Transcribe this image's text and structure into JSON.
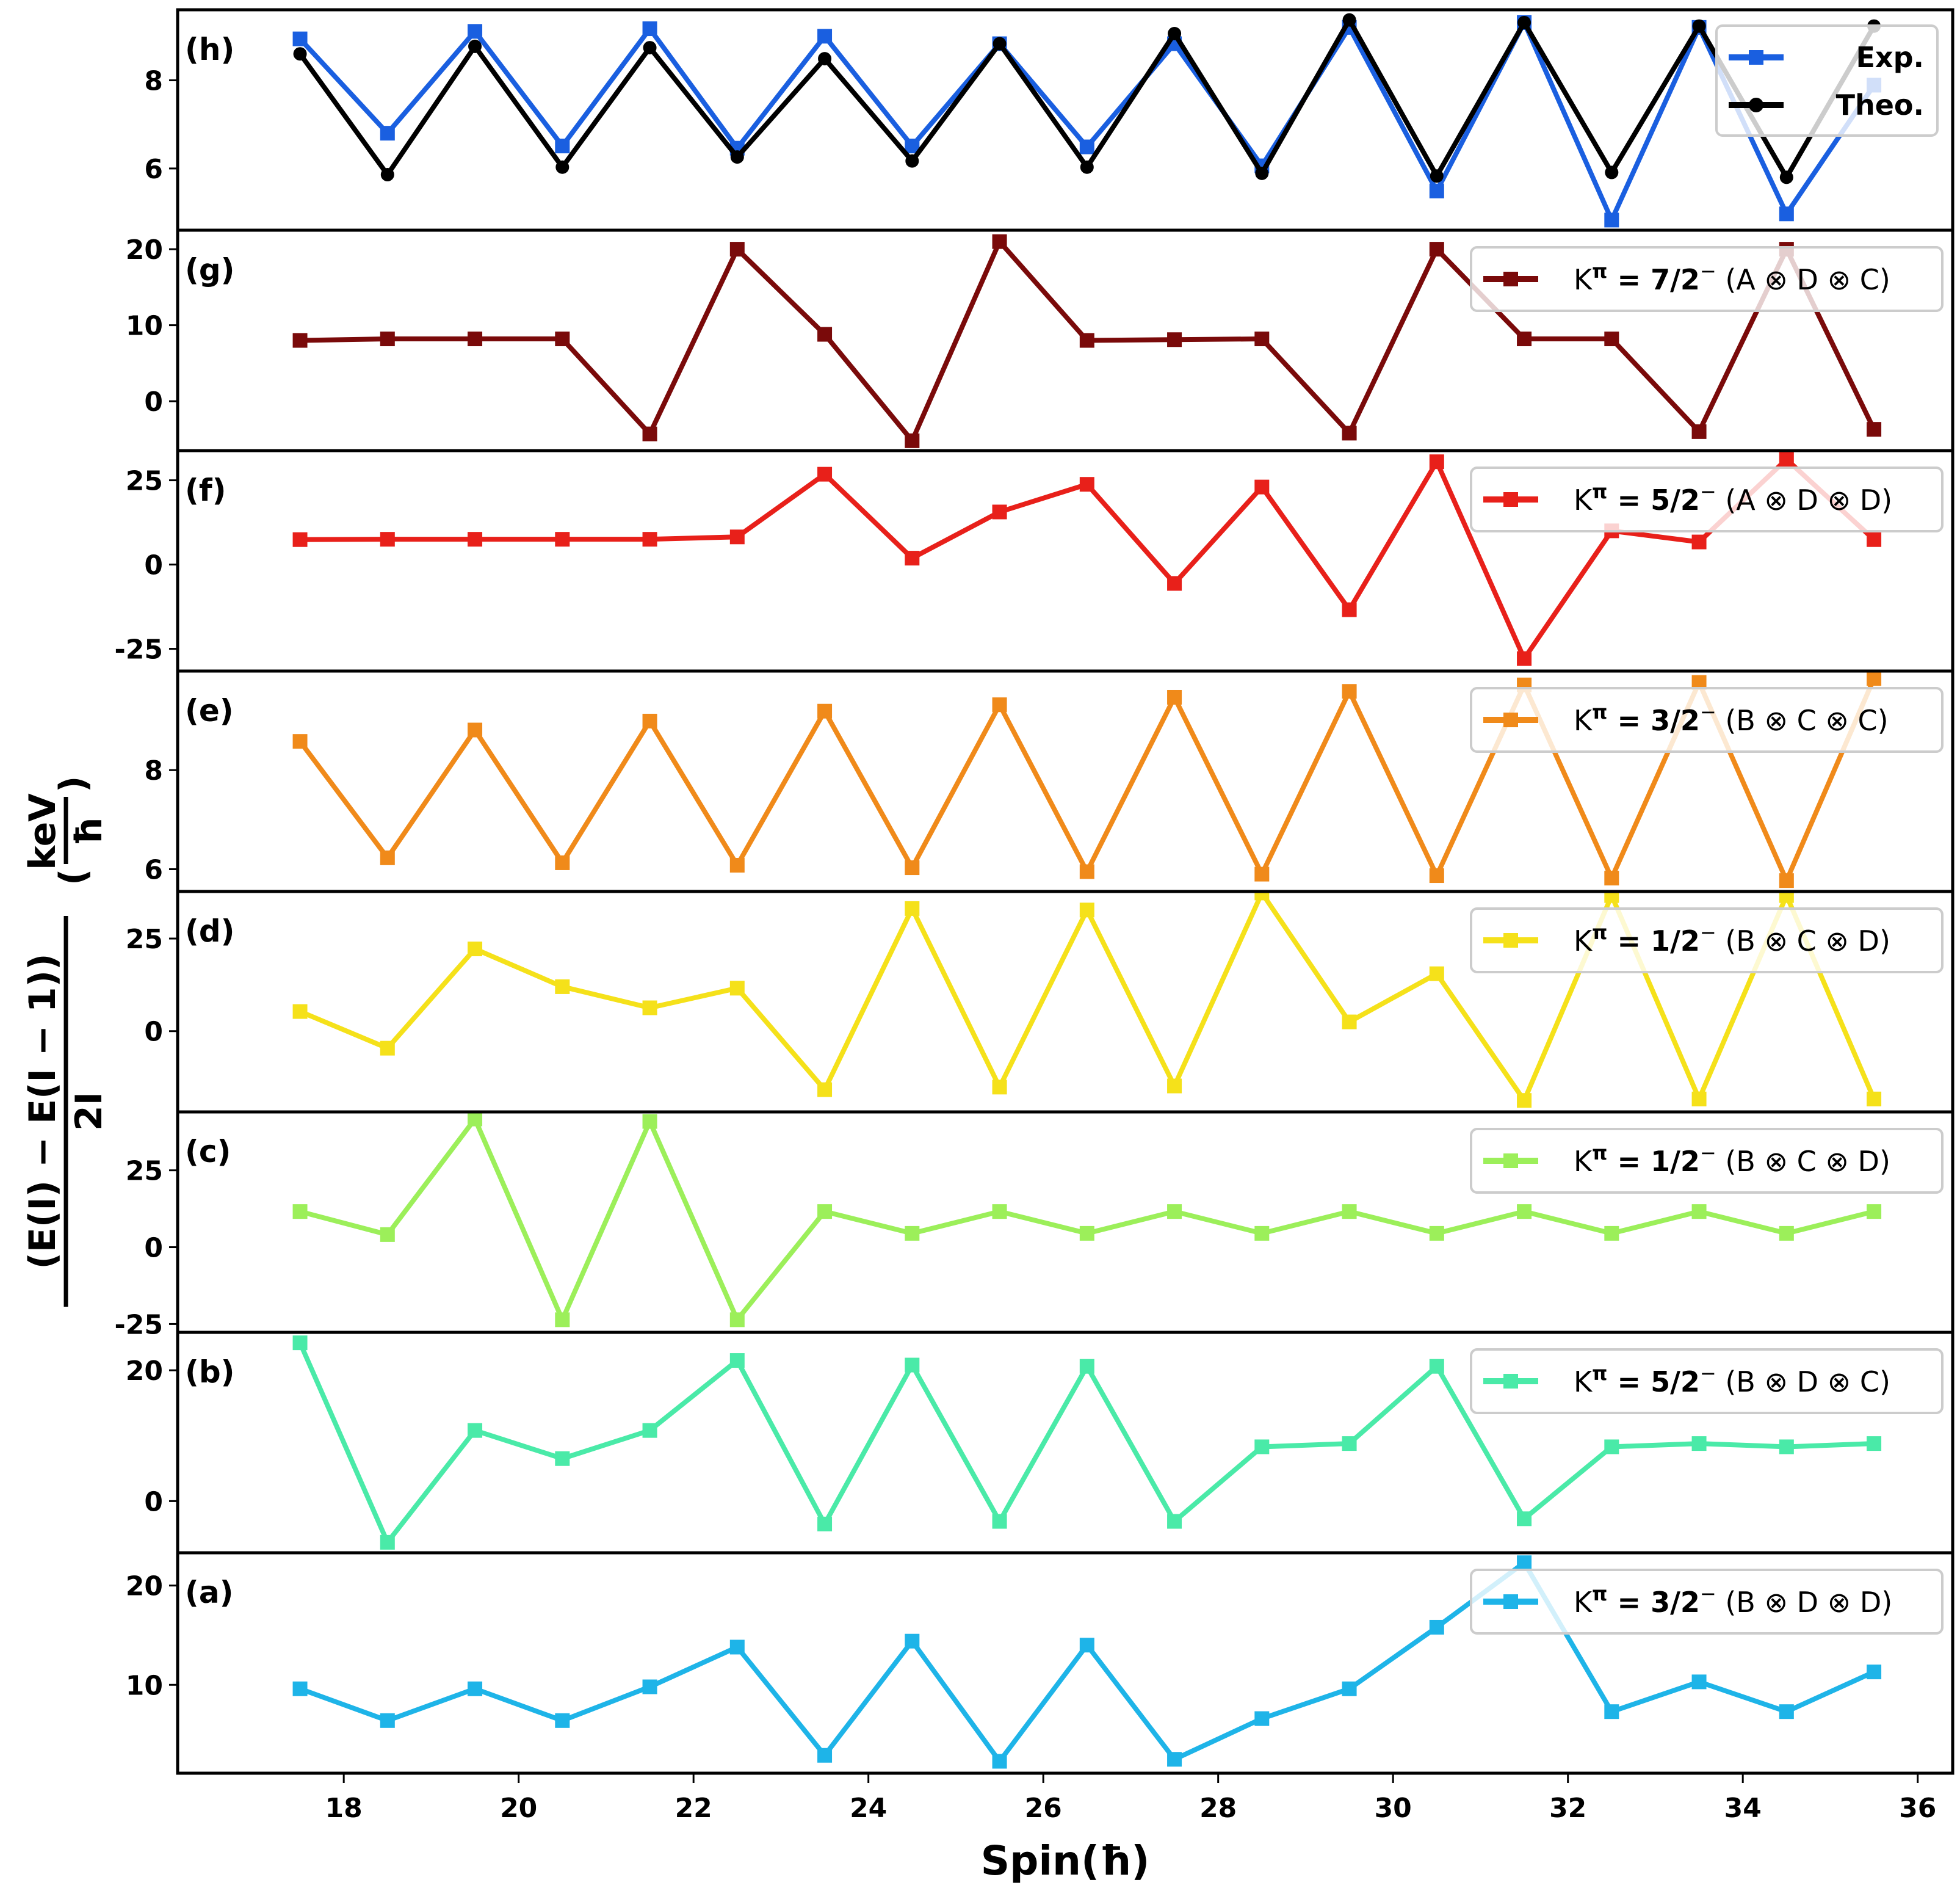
{
  "chart_data": {
    "type": "line",
    "figure": "stacked multi-panel line plot",
    "xlabel": "Spin(ħ)",
    "ylabel": {
      "numerator": "(E(I) − E(I − 1))",
      "denominator": "2I",
      "unit_numerator": "keV",
      "unit_denominator": "ħ"
    },
    "x": [
      17.5,
      18.5,
      19.5,
      20.5,
      21.5,
      22.5,
      23.5,
      24.5,
      25.5,
      26.5,
      27.5,
      28.5,
      29.5,
      30.5,
      31.5,
      32.5,
      33.5,
      34.5,
      35.5
    ],
    "xlim": [
      16.1,
      36.4
    ],
    "xticks": [
      18,
      20,
      22,
      24,
      26,
      28,
      30,
      32,
      34,
      36
    ],
    "xtick_labels": [
      "18",
      "20",
      "22",
      "24",
      "26",
      "28",
      "30",
      "32",
      "34",
      "36"
    ],
    "panels": [
      {
        "label": "(h)",
        "ylim": [
          4.6,
          9.6
        ],
        "yticks": [
          6,
          8
        ],
        "ytick_labels": [
          "6",
          "8"
        ],
        "legend_position": "top-right",
        "series": [
          {
            "name": "Exp.",
            "color": "#1a5fe0",
            "marker": "square",
            "values": [
              8.94,
              6.8,
              9.11,
              6.51,
              9.17,
              6.46,
              9.0,
              6.51,
              8.83,
              6.49,
              8.83,
              6.06,
              9.2,
              5.49,
              9.31,
              4.83,
              9.2,
              4.97,
              7.89
            ]
          },
          {
            "name": "Theo.",
            "color": "#000000",
            "marker": "circle",
            "values": [
              8.6,
              5.86,
              8.77,
              6.03,
              8.74,
              6.26,
              8.49,
              6.17,
              8.83,
              6.03,
              9.06,
              5.89,
              9.37,
              5.83,
              9.31,
              5.91,
              9.23,
              5.8,
              9.23
            ]
          }
        ],
        "legend": [
          {
            "text": "Exp."
          },
          {
            "text": "Theo."
          }
        ]
      },
      {
        "label": "(g)",
        "ylim": [
          -6.5,
          22.5
        ],
        "yticks": [
          0,
          10,
          20
        ],
        "ytick_labels": [
          "0",
          "10",
          "20"
        ],
        "legend_position": "top-right",
        "series": [
          {
            "name": "Kπ = 7/2− (A ⊗ D ⊗ C)",
            "color": "#7a0a0a",
            "marker": "square",
            "values": [
              8.0,
              8.2,
              8.2,
              8.2,
              -4.3,
              20.0,
              8.8,
              -5.2,
              21.0,
              8.0,
              8.1,
              8.2,
              -4.2,
              20.0,
              8.2,
              8.2,
              -4.0,
              20.0,
              -3.7
            ]
          }
        ],
        "legend": [
          {
            "prefix": "K",
            "sup": "π",
            "eq": " = ",
            "bold": "7/2",
            "sign": "−",
            "rest": "(A ⊗ D ⊗ C)"
          }
        ]
      },
      {
        "label": "(f)",
        "ylim": [
          -31.6,
          33.8
        ],
        "yticks": [
          -25,
          0,
          25
        ],
        "ytick_labels": [
          "-25",
          "0",
          "25"
        ],
        "legend_position": "top-right",
        "series": [
          {
            "name": "Kπ = 5/2− (A ⊗ D ⊗ D)",
            "color": "#e8201a",
            "marker": "square",
            "values": [
              7.4,
              7.5,
              7.5,
              7.5,
              7.5,
              8.2,
              26.8,
              1.9,
              15.6,
              23.8,
              -5.6,
              23.0,
              -13.4,
              30.5,
              -27.9,
              10.0,
              6.7,
              31.2,
              7.4
            ]
          }
        ],
        "legend": [
          {
            "prefix": "K",
            "sup": "π",
            "eq": " = ",
            "bold": "5/2",
            "sign": "−",
            "rest": "(A ⊗ D ⊗ D)"
          }
        ]
      },
      {
        "label": "(e)",
        "ylim": [
          5.55,
          10.0
        ],
        "yticks": [
          6,
          8
        ],
        "ytick_labels": [
          "6",
          "8"
        ],
        "legend_position": "top-right",
        "series": [
          {
            "name": "Kπ = 3/2− (B ⊗ C ⊗ C)",
            "color": "#f08a1a",
            "marker": "square",
            "values": [
              8.58,
              6.23,
              8.81,
              6.13,
              8.99,
              6.08,
              9.19,
              6.03,
              9.32,
              5.95,
              9.47,
              5.9,
              9.59,
              5.87,
              9.72,
              5.82,
              9.77,
              5.77,
              9.85
            ]
          }
        ],
        "legend": [
          {
            "prefix": "K",
            "sup": "π",
            "eq": " = ",
            "bold": "3/2",
            "sign": "−",
            "rest": "(B ⊗ C ⊗ C)"
          }
        ]
      },
      {
        "label": "(d)",
        "ylim": [
          -21.8,
          37.7
        ],
        "yticks": [
          0,
          25
        ],
        "ytick_labels": [
          "0",
          "25"
        ],
        "legend_position": "top-right",
        "series": [
          {
            "name": "Kπ = 1/2− (B ⊗ C ⊗ D)",
            "color": "#f5e11a",
            "marker": "square",
            "values": [
              5.3,
              -4.6,
              22.2,
              12.0,
              6.3,
              11.6,
              -15.8,
              33.1,
              -15.1,
              32.7,
              -14.8,
              37.3,
              2.5,
              15.5,
              -18.7,
              36.6,
              -18.3,
              36.6,
              -18.3
            ]
          }
        ],
        "legend": [
          {
            "prefix": "K",
            "sup": "π",
            "eq": " = ",
            "bold": "1/2",
            "sign": "−",
            "rest": "(B ⊗ C ⊗ D)"
          }
        ]
      },
      {
        "label": "(c)",
        "ylim": [
          -27.7,
          44.0
        ],
        "yticks": [
          -25,
          0,
          25
        ],
        "ytick_labels": [
          "-25",
          "0",
          "25"
        ],
        "legend_position": "top-right",
        "series": [
          {
            "name": "Kπ = 1/2− (B ⊗ C ⊗ D)",
            "color": "#9cef5a",
            "marker": "square",
            "values": [
              11.6,
              4.1,
              41.7,
              -23.6,
              40.9,
              -23.6,
              11.6,
              4.5,
              11.6,
              4.5,
              11.6,
              4.5,
              11.6,
              4.5,
              11.6,
              4.5,
              11.6,
              4.5,
              11.6
            ]
          }
        ],
        "legend": [
          {
            "prefix": "K",
            "sup": "π",
            "eq": " = ",
            "bold": "1/2",
            "sign": "−",
            "rest": "(B ⊗ C ⊗ D)"
          }
        ]
      },
      {
        "label": "(b)",
        "ylim": [
          -7.9,
          25.8
        ],
        "yticks": [
          0,
          20
        ],
        "ytick_labels": [
          "0",
          "20"
        ],
        "legend_position": "top-right",
        "series": [
          {
            "name": "Kπ = 5/2− (B ⊗ D ⊗ C)",
            "color": "#4aeaa8",
            "marker": "square",
            "values": [
              24.2,
              -6.3,
              10.8,
              6.5,
              10.8,
              21.5,
              -3.5,
              20.8,
              -3.1,
              20.6,
              -3.1,
              8.3,
              8.8,
              20.6,
              -2.7,
              8.3,
              8.8,
              8.3,
              8.8
            ]
          }
        ],
        "legend": [
          {
            "prefix": "K",
            "sup": "π",
            "eq": " = ",
            "bold": "5/2",
            "sign": "−",
            "rest": "(B ⊗ D ⊗ C)"
          }
        ]
      },
      {
        "label": "(a)",
        "ylim": [
          1.1,
          23.3
        ],
        "yticks": [
          10,
          20
        ],
        "ytick_labels": [
          "10",
          "20"
        ],
        "legend_position": "top-right",
        "series": [
          {
            "name": "Kπ = 3/2− (B ⊗ D ⊗ D)",
            "color": "#1eb4e8",
            "marker": "square",
            "values": [
              9.6,
              6.4,
              9.6,
              6.4,
              9.8,
              13.8,
              2.9,
              14.4,
              2.3,
              14.0,
              2.5,
              6.6,
              9.6,
              15.8,
              22.3,
              7.3,
              10.3,
              7.3,
              11.3
            ]
          }
        ],
        "legend": [
          {
            "prefix": "K",
            "sup": "π",
            "eq": " = ",
            "bold": "3/2",
            "sign": "−",
            "rest": "(B ⊗ D ⊗ D)"
          }
        ]
      }
    ]
  }
}
